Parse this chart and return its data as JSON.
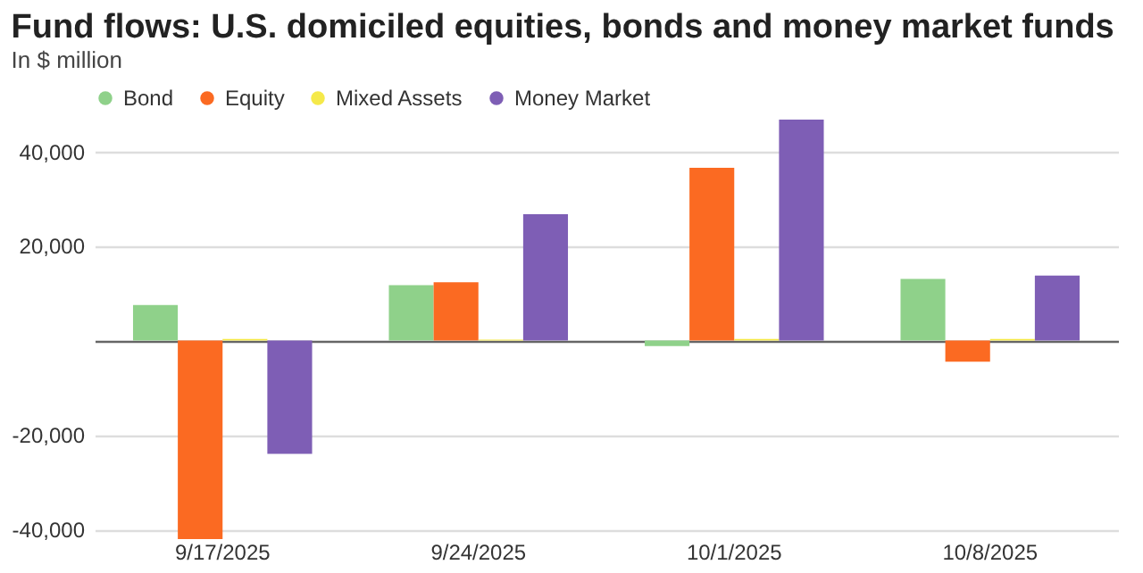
{
  "chart_data": {
    "type": "bar",
    "title": "Fund flows: U.S. domiciled equities, bonds and money market funds",
    "subtitle": "In $ million",
    "categories": [
      "9/17/2025",
      "9/24/2025",
      "10/1/2025",
      "10/8/2025"
    ],
    "series": [
      {
        "name": "Bond",
        "color": "#8fd18a",
        "values": [
          7500,
          11700,
          -1200,
          13000
        ]
      },
      {
        "name": "Equity",
        "color": "#fb6a22",
        "values": [
          -42000,
          12300,
          36500,
          -4500
        ]
      },
      {
        "name": "Mixed Assets",
        "color": "#f5e94a",
        "values": [
          300,
          200,
          300,
          300
        ]
      },
      {
        "name": "Money Market",
        "color": "#7e5eb5",
        "values": [
          -24000,
          26700,
          46700,
          13700
        ]
      }
    ],
    "ylim": [
      -42000,
      46700
    ],
    "yticks": [
      {
        "value": -40000,
        "label": "-40,000"
      },
      {
        "value": -20000,
        "label": "-20,000"
      },
      {
        "value": 0,
        "label": null
      },
      {
        "value": 20000,
        "label": "20,000"
      },
      {
        "value": 40000,
        "label": "40,000"
      }
    ],
    "grid": "y",
    "legend": "top left"
  }
}
